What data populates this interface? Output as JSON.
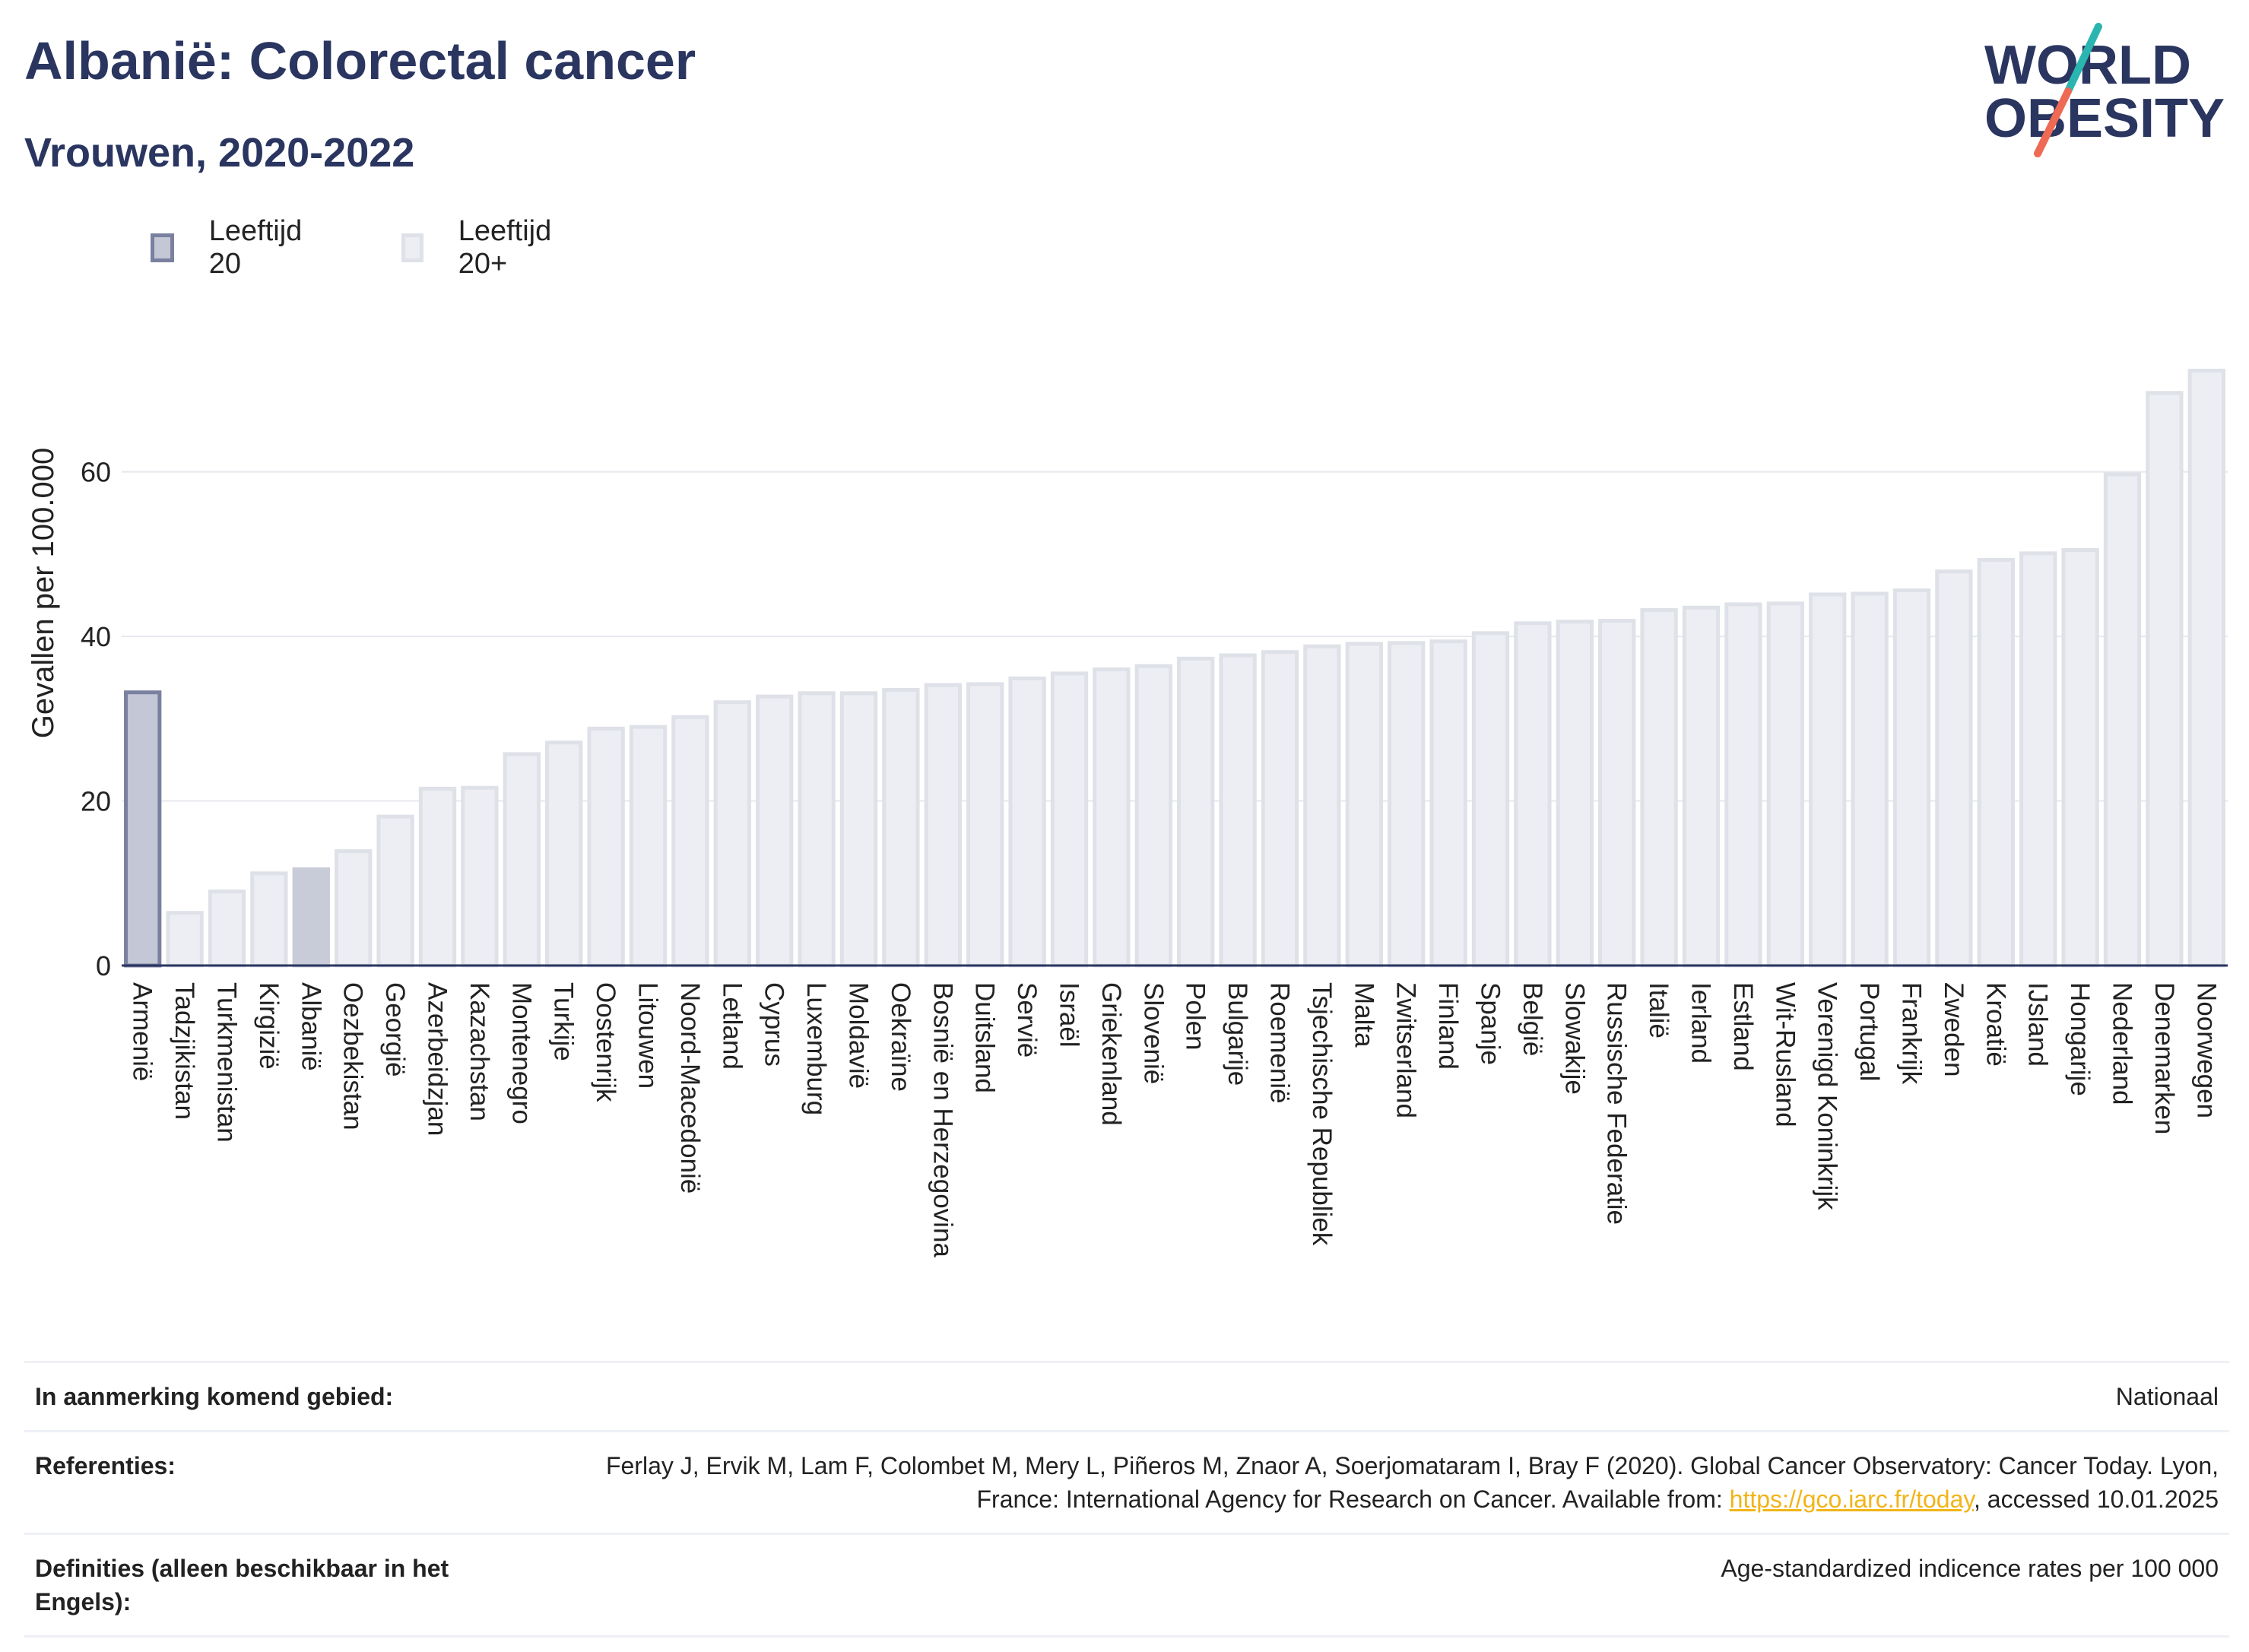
{
  "header": {
    "title": "Albanië: Colorectal cancer",
    "subtitle": "Vrouwen, 2020-2022"
  },
  "logo": {
    "line1": "WORLD",
    "line2": "OBESITY",
    "colors": {
      "text": "#2a3560",
      "slash_top": "#2bb5b0",
      "slash_bottom": "#ee6a55"
    }
  },
  "legend": [
    {
      "label": "Leeftijd 20",
      "fill": "#c3c7d6",
      "stroke": "#7a80a0"
    },
    {
      "label": "Leeftijd 20+",
      "fill": "#eceef3",
      "stroke": "#dfe1e8"
    }
  ],
  "chart_data": {
    "type": "bar",
    "ylabel": "Gevallen per 100.000",
    "xlabel": "",
    "ylim": [
      0,
      73
    ],
    "yticks": [
      0,
      20,
      40,
      60
    ],
    "grid": true,
    "categories": [
      "Armenië",
      "Tadzjikistan",
      "Turkmenistan",
      "Kirgizië",
      "Albanië",
      "Oezbekistan",
      "Georgië",
      "Azerbeidzjan",
      "Kazachstan",
      "Montenegro",
      "Turkije",
      "Oostenrijk",
      "Litouwen",
      "Noord-Macedonië",
      "Letland",
      "Cyprus",
      "Luxemburg",
      "Moldavië",
      "Oekraïne",
      "Bosnië en Herzegovina",
      "Duitsland",
      "Servië",
      "Israël",
      "Griekenland",
      "Slovenië",
      "Polen",
      "Bulgarije",
      "Roemenië",
      "Tsjechische Republiek",
      "Malta",
      "Zwitserland",
      "Finland",
      "Spanje",
      "België",
      "Slowakije",
      "Russische Federatie",
      "Italië",
      "Ierland",
      "Estland",
      "Wit-Rusland",
      "Verenigd Koninkrijk",
      "Portugal",
      "Frankrijk",
      "Zweden",
      "Kroatië",
      "IJsland",
      "Hongarije",
      "Nederland",
      "Denemarken",
      "Noorwegen"
    ],
    "values": [
      33.2,
      6.4,
      9.0,
      11.2,
      11.7,
      13.9,
      18.1,
      21.5,
      21.6,
      25.7,
      27.1,
      28.8,
      29.0,
      30.2,
      32.0,
      32.7,
      33.1,
      33.1,
      33.5,
      34.1,
      34.2,
      34.9,
      35.5,
      36.0,
      36.4,
      37.3,
      37.7,
      38.1,
      38.8,
      39.1,
      39.2,
      39.4,
      40.4,
      41.6,
      41.8,
      41.9,
      43.2,
      43.5,
      43.9,
      44.0,
      45.1,
      45.2,
      45.6,
      47.9,
      49.3,
      50.1,
      50.5,
      59.7,
      69.6,
      72.3
    ],
    "series_assignment": [
      "Leeftijd 20",
      "Leeftijd 20+",
      "Leeftijd 20+",
      "Leeftijd 20+",
      "highlight",
      "Leeftijd 20+",
      "Leeftijd 20+",
      "Leeftijd 20+",
      "Leeftijd 20+",
      "Leeftijd 20+",
      "Leeftijd 20+",
      "Leeftijd 20+",
      "Leeftijd 20+",
      "Leeftijd 20+",
      "Leeftijd 20+",
      "Leeftijd 20+",
      "Leeftijd 20+",
      "Leeftijd 20+",
      "Leeftijd 20+",
      "Leeftijd 20+",
      "Leeftijd 20+",
      "Leeftijd 20+",
      "Leeftijd 20+",
      "Leeftijd 20+",
      "Leeftijd 20+",
      "Leeftijd 20+",
      "Leeftijd 20+",
      "Leeftijd 20+",
      "Leeftijd 20+",
      "Leeftijd 20+",
      "Leeftijd 20+",
      "Leeftijd 20+",
      "Leeftijd 20+",
      "Leeftijd 20+",
      "Leeftijd 20+",
      "Leeftijd 20+",
      "Leeftijd 20+",
      "Leeftijd 20+",
      "Leeftijd 20+",
      "Leeftijd 20+",
      "Leeftijd 20+",
      "Leeftijd 20+",
      "Leeftijd 20+",
      "Leeftijd 20+",
      "Leeftijd 20+",
      "Leeftijd 20+",
      "Leeftijd 20+",
      "Leeftijd 20+",
      "Leeftijd 20+",
      "Leeftijd 20+"
    ],
    "colors": {
      "Leeftijd 20": {
        "fill": "#c3c7d6",
        "stroke": "#7a80a0"
      },
      "Leeftijd 20+": {
        "fill": "#eceef3",
        "stroke": "#dfe1e8"
      },
      "highlight": {
        "fill": "#c8cbd8",
        "stroke": "#c8cbd8"
      }
    }
  },
  "info": {
    "rows": [
      {
        "label": "In aanmerking komend gebied:",
        "value": "Nationaal"
      },
      {
        "label": "Referenties:",
        "value_before": "Ferlay J, Ervik M, Lam F, Colombet M, Mery L, Piñeros M, Znaor A, Soerjomataram I, Bray F (2020). Global Cancer Observatory: Cancer Today. Lyon, France: International Agency for Research on Cancer. Available from: ",
        "link": "https://gco.iarc.fr/today",
        "value_after": ", accessed 10.01.2025"
      },
      {
        "label": "Definities (alleen beschikbaar in het Engels):",
        "value": "Age-standardized indicence rates per 100 000"
      }
    ]
  }
}
